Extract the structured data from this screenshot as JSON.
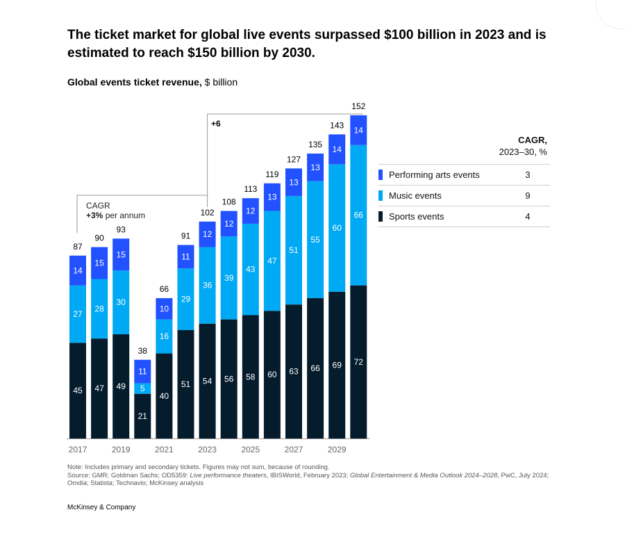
{
  "title": "The ticket market for global live events surpassed $100 billion in 2023 and is estimated to reach $150 billion by 2030.",
  "subtitle": {
    "bold": "Global events ticket revenue,",
    "unit": " $ billion"
  },
  "colors": {
    "performing": "#2251ff",
    "music": "#00a9f4",
    "sports": "#051c2c",
    "axis": "#999999",
    "bracket": "#9a9a9a"
  },
  "chart_data": {
    "type": "bar",
    "stacked": true,
    "categories": [
      "2017",
      "2018",
      "2019",
      "2020",
      "2021",
      "2022",
      "2023",
      "2024",
      "2025",
      "2026",
      "2027",
      "2028",
      "2029",
      "2030"
    ],
    "x_tick_labels": [
      "2017",
      "",
      "2019",
      "",
      "2021",
      "",
      "2023",
      "",
      "2025",
      "",
      "2027",
      "",
      "2029",
      ""
    ],
    "series": [
      {
        "name": "Sports events",
        "key": "sports",
        "values": [
          45,
          47,
          49,
          21,
          40,
          51,
          54,
          56,
          58,
          60,
          63,
          66,
          69,
          72
        ]
      },
      {
        "name": "Music events",
        "key": "music",
        "values": [
          27,
          28,
          30,
          5,
          16,
          29,
          36,
          39,
          43,
          47,
          51,
          55,
          60,
          66
        ]
      },
      {
        "name": "Performing arts events",
        "key": "performing",
        "values": [
          14,
          15,
          15,
          11,
          10,
          11,
          12,
          12,
          12,
          13,
          13,
          13,
          14,
          14
        ]
      }
    ],
    "totals": [
      87,
      90,
      93,
      38,
      66,
      91,
      102,
      108,
      113,
      119,
      127,
      135,
      143,
      152
    ],
    "ylim": [
      0,
      160
    ],
    "grid": false,
    "annotations": [
      {
        "label": "CAGR",
        "emphasis": "+3%",
        "rest": " per annum"
      },
      {
        "label": "+6"
      }
    ]
  },
  "legend": {
    "header_line1": "CAGR,",
    "header_line2": "2023–30, %",
    "items": [
      {
        "name": "Performing arts events",
        "key": "performing",
        "cagr": "3"
      },
      {
        "name": "Music events",
        "key": "music",
        "cagr": "9"
      },
      {
        "name": "Sports events",
        "key": "sports",
        "cagr": "4"
      }
    ]
  },
  "notes": {
    "line1": "Note: Includes primary and secondary tickets. Figures may not sum, because of rounding.",
    "source_a": "Source: GMR; Goldman Sachs; OD5359: ",
    "source_i1": "Live performance theaters",
    "source_b": ", IBISWorld, February 2023; ",
    "source_i2": "Global Entertainment & Media Outlook 2024–2028",
    "source_c": ", PwC, July 2024; Omdia; Statista; Technavio; McKinsey analysis"
  },
  "brand": "McKinsey & Company"
}
